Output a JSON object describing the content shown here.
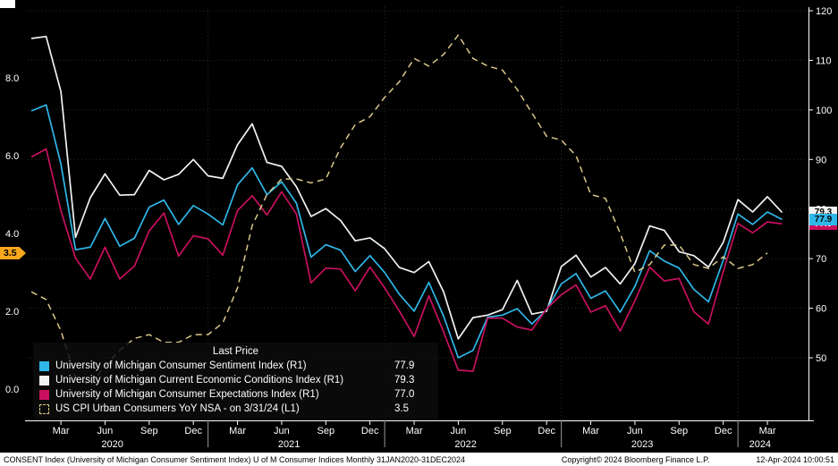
{
  "colors": {
    "background": "#000000",
    "grid": "#2d2d2d",
    "axis": "#ffffff",
    "sentiment": "#2fb7e8",
    "conditions": "#f2f2f2",
    "expectations": "#c9105f",
    "cpi": "#d9c789",
    "marker_amber": "#f7a81d"
  },
  "axes": {
    "left": {
      "ticks": [
        {
          "label": "8.0",
          "value": 8
        },
        {
          "label": "6.0",
          "value": 6
        },
        {
          "label": "4.0",
          "value": 4
        },
        {
          "label": "2.0",
          "value": 2
        },
        {
          "label": "0.0",
          "value": 0
        }
      ],
      "marker": {
        "label": "3.5",
        "value": 3.5
      }
    },
    "right": {
      "ticks": [
        {
          "label": "120",
          "value": 120
        },
        {
          "label": "110",
          "value": 110
        },
        {
          "label": "100",
          "value": 100
        },
        {
          "label": "90",
          "value": 90
        },
        {
          "label": "80",
          "value": 80
        },
        {
          "label": "70",
          "value": 70
        },
        {
          "label": "60",
          "value": 60
        },
        {
          "label": "50",
          "value": 50
        }
      ],
      "markers": [
        {
          "label": "79.3",
          "value": 79.3,
          "series": "conditions"
        },
        {
          "label": "77.0",
          "value": 77.0,
          "series": "expectations"
        },
        {
          "label": "77.9",
          "value": 77.9,
          "series": "sentiment"
        }
      ]
    },
    "x": {
      "months": [
        {
          "label": "Mar",
          "index": 2
        },
        {
          "label": "Jun",
          "index": 5
        },
        {
          "label": "Sep",
          "index": 8
        },
        {
          "label": "Dec",
          "index": 11
        },
        {
          "label": "Mar",
          "index": 14
        },
        {
          "label": "Jun",
          "index": 17
        },
        {
          "label": "Sep",
          "index": 20
        },
        {
          "label": "Dec",
          "index": 23
        },
        {
          "label": "Mar",
          "index": 26
        },
        {
          "label": "Jun",
          "index": 29
        },
        {
          "label": "Sep",
          "index": 32
        },
        {
          "label": "Dec",
          "index": 35
        },
        {
          "label": "Mar",
          "index": 38
        },
        {
          "label": "Jun",
          "index": 41
        },
        {
          "label": "Sep",
          "index": 44
        },
        {
          "label": "Dec",
          "index": 47
        },
        {
          "label": "Mar",
          "index": 50
        }
      ],
      "years": [
        {
          "label": "2020",
          "index": 5.5
        },
        {
          "label": "2021",
          "index": 17.5
        },
        {
          "label": "2022",
          "index": 29.5
        },
        {
          "label": "2023",
          "index": 41.5
        },
        {
          "label": "2024",
          "index": 49.5
        }
      ],
      "year_boundaries": [
        12,
        24,
        36,
        48
      ]
    }
  },
  "legend": {
    "title": "Last Price",
    "items": [
      {
        "label": "University of Michigan Consumer Sentiment Index  (R1)",
        "value": "77.9",
        "series": "sentiment"
      },
      {
        "label": "University of Michigan Current Economic Conditions Index  (R1)",
        "value": "79.3",
        "series": "conditions"
      },
      {
        "label": "University of Michigan Consumer Expectations Index  (R1)",
        "value": "77.0",
        "series": "expectations"
      },
      {
        "label": "US CPI Urban Consumers YoY NSA -  on 3/31/24  (L1)",
        "value": "3.5",
        "series": "cpi"
      }
    ]
  },
  "footer": {
    "left": "CONSENT Index (University of Michigan Consumer Sentiment Index) U of M Consumer Indices  Monthly 31JAN2020-31DEC2024",
    "copyright": "Copyright© 2024 Bloomberg Finance L.P.",
    "timestamp": "12-Apr-2024 10:00:51"
  },
  "chart_data": {
    "type": "line",
    "title": "",
    "x_unit": "month",
    "x_start": "Jan 2020",
    "x_end": "Apr 2024",
    "left_axis": {
      "name": "L1",
      "ticks": [
        0,
        2,
        4,
        6,
        8
      ],
      "range": [
        -0.8,
        9.8
      ]
    },
    "right_axis": {
      "name": "R1",
      "ticks": [
        50,
        60,
        70,
        80,
        90,
        100,
        110,
        120
      ],
      "range": [
        37,
        121
      ]
    },
    "legend_position": "bottom-left",
    "grid": true,
    "series": [
      {
        "name": "University of Michigan Current Economic Conditions Index",
        "axis": "L1R1",
        "scale": "R1",
        "style": "solid",
        "color_key": "conditions",
        "last": 79.3,
        "values": [
          114.4,
          114.8,
          103.7,
          74.3,
          82.3,
          87.1,
          82.8,
          82.9,
          87.8,
          85.9,
          87.0,
          90.0,
          86.7,
          86.2,
          93.0,
          97.2,
          89.4,
          88.6,
          84.5,
          78.5,
          80.1,
          77.7,
          73.6,
          74.2,
          72.0,
          68.2,
          67.2,
          69.4,
          63.3,
          53.8,
          58.1,
          58.6,
          59.7,
          65.6,
          58.8,
          59.4,
          68.4,
          70.7,
          66.3,
          68.2,
          64.9,
          69.0,
          76.6,
          75.7,
          71.4,
          70.6,
          68.3,
          73.3,
          81.9,
          79.4,
          82.5,
          79.3
        ]
      },
      {
        "name": "University of Michigan Consumer Sentiment Index",
        "axis": "R1",
        "scale": "R1",
        "style": "solid",
        "color_key": "sentiment",
        "last": 77.9,
        "values": [
          99.8,
          101.0,
          89.1,
          71.8,
          72.3,
          78.1,
          72.5,
          74.1,
          80.4,
          81.8,
          76.9,
          80.7,
          79.0,
          76.8,
          84.9,
          88.3,
          82.9,
          85.5,
          81.2,
          70.3,
          72.8,
          71.7,
          67.4,
          70.6,
          67.2,
          62.8,
          59.4,
          65.2,
          58.4,
          50.0,
          51.5,
          58.2,
          58.6,
          59.9,
          56.8,
          59.7,
          64.9,
          67.0,
          62.0,
          63.5,
          59.2,
          64.4,
          71.6,
          69.5,
          68.1,
          63.8,
          61.3,
          69.7,
          79.0,
          76.9,
          79.4,
          77.9
        ]
      },
      {
        "name": "University of Michigan Consumer Expectations Index",
        "axis": "R1",
        "scale": "R1",
        "style": "solid",
        "color_key": "expectations",
        "last": 77.0,
        "values": [
          90.5,
          92.1,
          79.7,
          70.1,
          65.9,
          72.3,
          65.9,
          68.5,
          75.6,
          79.2,
          70.5,
          74.6,
          74.0,
          70.7,
          79.7,
          82.7,
          78.8,
          83.5,
          79.0,
          65.1,
          68.1,
          67.9,
          63.5,
          68.3,
          64.1,
          59.4,
          54.3,
          62.5,
          55.2,
          47.5,
          47.3,
          58.0,
          58.0,
          56.2,
          55.6,
          59.9,
          62.7,
          64.7,
          59.2,
          60.5,
          55.4,
          61.5,
          68.3,
          65.5,
          66.0,
          59.3,
          56.8,
          67.4,
          77.1,
          75.2,
          77.4,
          77.0
        ]
      },
      {
        "name": "US CPI Urban Consumers YoY NSA",
        "axis": "L1",
        "scale": "L1",
        "style": "dashed",
        "color_key": "cpi",
        "last": 3.5,
        "values": [
          2.5,
          2.3,
          1.5,
          0.3,
          0.1,
          0.6,
          1.0,
          1.3,
          1.4,
          1.2,
          1.2,
          1.4,
          1.4,
          1.7,
          2.6,
          4.2,
          5.0,
          5.4,
          5.4,
          5.3,
          5.4,
          6.2,
          6.8,
          7.0,
          7.5,
          7.9,
          8.5,
          8.3,
          8.6,
          9.1,
          8.5,
          8.3,
          8.2,
          7.7,
          7.1,
          6.5,
          6.4,
          6.0,
          5.0,
          4.9,
          4.0,
          3.0,
          3.2,
          3.7,
          3.7,
          3.2,
          3.1,
          3.4,
          3.1,
          3.2,
          3.5
        ]
      }
    ]
  }
}
